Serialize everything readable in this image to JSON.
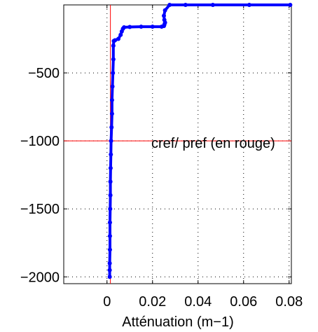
{
  "chart_data": {
    "type": "line",
    "title": "",
    "xlabel": "Atténuation (m−1)",
    "ylabel": "",
    "xlim": [
      -0.019,
      0.081
    ],
    "ylim": [
      -2050,
      0
    ],
    "x_ticks": [
      0,
      0.02,
      0.04,
      0.06,
      0.08
    ],
    "x_tick_labels": [
      "0",
      "0.02",
      "0.04",
      "0.06",
      "0.08"
    ],
    "y_ticks": [
      -500,
      -1000,
      -1500,
      -2000
    ],
    "y_tick_labels": [
      "−500",
      "−1000",
      "−1500",
      "−2000"
    ],
    "grid": true,
    "annotation": "cref/ pref (en rouge)",
    "reference_lines": {
      "color": "#ff0000",
      "vertical_x": 0.0015,
      "horizontal_y": -1000
    },
    "series": [
      {
        "color": "#0000ff",
        "markers": true,
        "x": [
          0.0805,
          0.0625,
          0.0465,
          0.0345,
          0.0275,
          0.0255,
          0.025,
          0.0252,
          0.0255,
          0.0252,
          0.025,
          0.024,
          0.02,
          0.015,
          0.01,
          0.0075,
          0.007,
          0.0065,
          0.006,
          0.005,
          0.0035,
          0.003,
          0.0028,
          0.0028,
          0.0026,
          0.0024,
          0.0022,
          0.0022,
          0.002,
          0.0018,
          0.0017,
          0.0016,
          0.0015,
          0.0015,
          0.0014,
          0.0013,
          0.0013,
          0.0013,
          0.0012,
          0.0012,
          0.0012
        ],
        "y": [
          0,
          0,
          0,
          0,
          0,
          -40,
          -80,
          -110,
          -130,
          -145,
          -155,
          -160,
          -160,
          -160,
          -162,
          -165,
          -175,
          -195,
          -220,
          -250,
          -260,
          -265,
          -300,
          -400,
          -500,
          -600,
          -700,
          -800,
          -900,
          -1000,
          -1100,
          -1200,
          -1300,
          -1400,
          -1500,
          -1600,
          -1700,
          -1800,
          -1900,
          -1950,
          -2000
        ]
      }
    ]
  }
}
